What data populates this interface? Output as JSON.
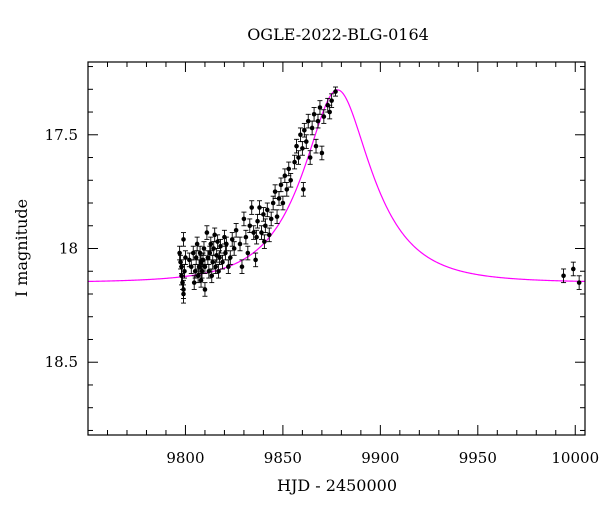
{
  "chart_data": {
    "type": "scatter",
    "title": "OGLE-2022-BLG-0164",
    "xlabel": "HJD - 2450000",
    "ylabel": "I magnitude",
    "xlim": [
      9750,
      10005
    ],
    "ylim": [
      18.82,
      17.18
    ],
    "y_inverted": true,
    "x_ticks": [
      9800,
      9850,
      9900,
      9950,
      10000
    ],
    "x_tick_labels": [
      "9800",
      "9850",
      "9900",
      "9950",
      "10000"
    ],
    "y_ticks": [
      17.5,
      18,
      18.5
    ],
    "y_tick_labels": [
      "17.5",
      "18",
      "18.5"
    ],
    "grid": false,
    "colors": {
      "points": "#000000",
      "model": "#ff00ff",
      "frame": "#000000"
    },
    "series": [
      {
        "type": "scatter",
        "points": [
          {
            "x": 9797,
            "y": 18.02,
            "err": 0.03
          },
          {
            "x": 9797.5,
            "y": 18.06,
            "err": 0.03
          },
          {
            "x": 9798,
            "y": 18.08,
            "err": 0.03
          },
          {
            "x": 9798,
            "y": 18.12,
            "err": 0.04
          },
          {
            "x": 9798.5,
            "y": 18.15,
            "err": 0.03
          },
          {
            "x": 9799,
            "y": 18.18,
            "err": 0.04
          },
          {
            "x": 9799,
            "y": 18.2,
            "err": 0.04
          },
          {
            "x": 9799.5,
            "y": 18.1,
            "err": 0.03
          },
          {
            "x": 9800,
            "y": 18.04,
            "err": 0.03
          },
          {
            "x": 9799,
            "y": 17.96,
            "err": 0.03
          },
          {
            "x": 9802,
            "y": 18.05,
            "err": 0.03
          },
          {
            "x": 9803,
            "y": 18.08,
            "err": 0.03
          },
          {
            "x": 9804,
            "y": 18.02,
            "err": 0.03
          },
          {
            "x": 9804.5,
            "y": 18.15,
            "err": 0.03
          },
          {
            "x": 9805,
            "y": 18.1,
            "err": 0.03
          },
          {
            "x": 9805.5,
            "y": 18.04,
            "err": 0.03
          },
          {
            "x": 9806,
            "y": 17.98,
            "err": 0.03
          },
          {
            "x": 9806.5,
            "y": 18.12,
            "err": 0.03
          },
          {
            "x": 9807,
            "y": 18.08,
            "err": 0.03
          },
          {
            "x": 9807.5,
            "y": 18.02,
            "err": 0.03
          },
          {
            "x": 9808,
            "y": 18.06,
            "err": 0.03
          },
          {
            "x": 9808,
            "y": 18.14,
            "err": 0.03
          },
          {
            "x": 9808.5,
            "y": 18.1,
            "err": 0.03
          },
          {
            "x": 9809,
            "y": 18.05,
            "err": 0.03
          },
          {
            "x": 9809.5,
            "y": 18.0,
            "err": 0.03
          },
          {
            "x": 9810,
            "y": 18.08,
            "err": 0.03
          },
          {
            "x": 9810,
            "y": 18.18,
            "err": 0.03
          },
          {
            "x": 9811,
            "y": 17.93,
            "err": 0.03
          },
          {
            "x": 9811.5,
            "y": 18.04,
            "err": 0.03
          },
          {
            "x": 9812,
            "y": 18.1,
            "err": 0.03
          },
          {
            "x": 9812.5,
            "y": 18.02,
            "err": 0.03
          },
          {
            "x": 9813,
            "y": 17.98,
            "err": 0.03
          },
          {
            "x": 9813.5,
            "y": 18.12,
            "err": 0.03
          },
          {
            "x": 9814,
            "y": 18.06,
            "err": 0.03
          },
          {
            "x": 9814.5,
            "y": 18.0,
            "err": 0.03
          },
          {
            "x": 9815,
            "y": 17.94,
            "err": 0.03
          },
          {
            "x": 9815.5,
            "y": 18.08,
            "err": 0.03
          },
          {
            "x": 9816,
            "y": 18.03,
            "err": 0.03
          },
          {
            "x": 9816.5,
            "y": 17.97,
            "err": 0.03
          },
          {
            "x": 9817,
            "y": 18.1,
            "err": 0.03
          },
          {
            "x": 9817.5,
            "y": 18.04,
            "err": 0.03
          },
          {
            "x": 9818,
            "y": 17.99,
            "err": 0.03
          },
          {
            "x": 9819,
            "y": 18.06,
            "err": 0.03
          },
          {
            "x": 9820,
            "y": 17.95,
            "err": 0.03
          },
          {
            "x": 9820.5,
            "y": 18.02,
            "err": 0.03
          },
          {
            "x": 9821,
            "y": 17.98,
            "err": 0.03
          },
          {
            "x": 9822,
            "y": 18.08,
            "err": 0.03
          },
          {
            "x": 9823,
            "y": 18.04,
            "err": 0.03
          },
          {
            "x": 9824,
            "y": 17.96,
            "err": 0.03
          },
          {
            "x": 9825,
            "y": 18.0,
            "err": 0.03
          },
          {
            "x": 9826,
            "y": 17.92,
            "err": 0.03
          },
          {
            "x": 9828,
            "y": 17.98,
            "err": 0.03
          },
          {
            "x": 9829,
            "y": 18.08,
            "err": 0.03
          },
          {
            "x": 9830,
            "y": 17.87,
            "err": 0.03
          },
          {
            "x": 9831,
            "y": 17.95,
            "err": 0.03
          },
          {
            "x": 9832,
            "y": 18.02,
            "err": 0.03
          },
          {
            "x": 9833,
            "y": 17.9,
            "err": 0.03
          },
          {
            "x": 9834,
            "y": 17.82,
            "err": 0.03
          },
          {
            "x": 9835,
            "y": 17.93,
            "err": 0.03
          },
          {
            "x": 9836,
            "y": 18.05,
            "err": 0.03
          },
          {
            "x": 9836.5,
            "y": 17.95,
            "err": 0.03
          },
          {
            "x": 9837,
            "y": 17.88,
            "err": 0.03
          },
          {
            "x": 9838,
            "y": 17.82,
            "err": 0.03
          },
          {
            "x": 9839,
            "y": 17.93,
            "err": 0.03
          },
          {
            "x": 9840,
            "y": 17.85,
            "err": 0.03
          },
          {
            "x": 9840.5,
            "y": 17.97,
            "err": 0.03
          },
          {
            "x": 9841,
            "y": 17.9,
            "err": 0.03
          },
          {
            "x": 9842,
            "y": 17.83,
            "err": 0.03
          },
          {
            "x": 9843,
            "y": 17.94,
            "err": 0.03
          },
          {
            "x": 9844,
            "y": 17.87,
            "err": 0.03
          },
          {
            "x": 9845,
            "y": 17.8,
            "err": 0.03
          },
          {
            "x": 9846,
            "y": 17.75,
            "err": 0.03
          },
          {
            "x": 9847,
            "y": 17.86,
            "err": 0.03
          },
          {
            "x": 9848,
            "y": 17.78,
            "err": 0.03
          },
          {
            "x": 9849,
            "y": 17.72,
            "err": 0.03
          },
          {
            "x": 9850,
            "y": 17.8,
            "err": 0.03
          },
          {
            "x": 9851,
            "y": 17.68,
            "err": 0.03
          },
          {
            "x": 9852,
            "y": 17.74,
            "err": 0.03
          },
          {
            "x": 9853,
            "y": 17.65,
            "err": 0.03
          },
          {
            "x": 9854,
            "y": 17.7,
            "err": 0.03
          },
          {
            "x": 9856,
            "y": 17.62,
            "err": 0.03
          },
          {
            "x": 9857,
            "y": 17.55,
            "err": 0.03
          },
          {
            "x": 9858,
            "y": 17.6,
            "err": 0.03
          },
          {
            "x": 9859,
            "y": 17.5,
            "err": 0.03
          },
          {
            "x": 9860,
            "y": 17.56,
            "err": 0.03
          },
          {
            "x": 9860.5,
            "y": 17.74,
            "err": 0.03
          },
          {
            "x": 9861,
            "y": 17.48,
            "err": 0.03
          },
          {
            "x": 9862,
            "y": 17.53,
            "err": 0.03
          },
          {
            "x": 9863,
            "y": 17.44,
            "err": 0.03
          },
          {
            "x": 9864,
            "y": 17.6,
            "err": 0.03
          },
          {
            "x": 9865,
            "y": 17.47,
            "err": 0.03
          },
          {
            "x": 9866,
            "y": 17.41,
            "err": 0.03
          },
          {
            "x": 9867,
            "y": 17.55,
            "err": 0.03
          },
          {
            "x": 9868,
            "y": 17.44,
            "err": 0.03
          },
          {
            "x": 9869,
            "y": 17.38,
            "err": 0.03
          },
          {
            "x": 9870,
            "y": 17.58,
            "err": 0.03
          },
          {
            "x": 9871,
            "y": 17.42,
            "err": 0.03
          },
          {
            "x": 9873,
            "y": 17.37,
            "err": 0.03
          },
          {
            "x": 9874,
            "y": 17.4,
            "err": 0.03
          },
          {
            "x": 9875,
            "y": 17.35,
            "err": 0.03
          },
          {
            "x": 9877,
            "y": 17.31,
            "err": 0.02
          },
          {
            "x": 9994,
            "y": 18.12,
            "err": 0.03
          },
          {
            "x": 9999,
            "y": 18.09,
            "err": 0.03
          },
          {
            "x": 10002,
            "y": 18.15,
            "err": 0.03
          }
        ]
      },
      {
        "type": "line",
        "model": {
          "t0": 9878,
          "tE": 30,
          "u0": 0.5,
          "baseline": 18.15
        }
      }
    ]
  }
}
